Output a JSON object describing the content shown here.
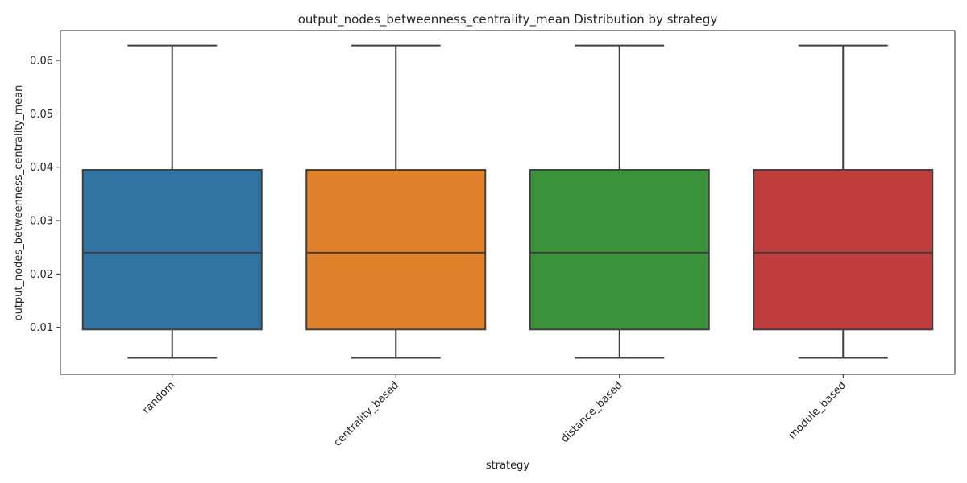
{
  "chart_data": {
    "type": "box",
    "title": "output_nodes_betweenness_centrality_mean Distribution by strategy",
    "xlabel": "strategy",
    "ylabel": "output_nodes_betweenness_centrality_mean",
    "ylim": [
      0.0012,
      0.0656
    ],
    "yticks": [
      0.01,
      0.02,
      0.03,
      0.04,
      0.05,
      0.06
    ],
    "ytick_labels": [
      "0.01",
      "0.02",
      "0.03",
      "0.04",
      "0.05",
      "0.06"
    ],
    "grid": false,
    "legend": "none",
    "categories": [
      "random",
      "centrality_based",
      "distance_based",
      "module_based"
    ],
    "series": [
      {
        "category": "random",
        "color": "#3274a1",
        "whisker_low": 0.0043,
        "q1": 0.0096,
        "median": 0.024,
        "q3": 0.0395,
        "whisker_high": 0.0628
      },
      {
        "category": "centrality_based",
        "color": "#e1812c",
        "whisker_low": 0.0043,
        "q1": 0.0096,
        "median": 0.024,
        "q3": 0.0395,
        "whisker_high": 0.0628
      },
      {
        "category": "distance_based",
        "color": "#3a923a",
        "whisker_low": 0.0043,
        "q1": 0.0096,
        "median": 0.024,
        "q3": 0.0395,
        "whisker_high": 0.0628
      },
      {
        "category": "module_based",
        "color": "#c03d3e",
        "whisker_low": 0.0043,
        "q1": 0.0096,
        "median": 0.024,
        "q3": 0.0395,
        "whisker_high": 0.0628
      }
    ],
    "line_color": "#3f3f3f",
    "axis_color": "#262626"
  }
}
